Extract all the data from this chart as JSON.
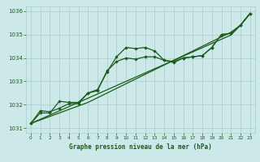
{
  "title": "Graphe pression niveau de la mer (hPa)",
  "bg_color": "#cce8e8",
  "grid_color": "#aacccc",
  "line_color": "#1a5c1a",
  "xlim": [
    -0.5,
    23.5
  ],
  "ylim": [
    1030.8,
    1036.2
  ],
  "yticks": [
    1031,
    1032,
    1033,
    1034,
    1035,
    1036
  ],
  "xticks": [
    0,
    1,
    2,
    3,
    4,
    5,
    6,
    7,
    8,
    9,
    10,
    11,
    12,
    13,
    14,
    15,
    16,
    17,
    18,
    19,
    20,
    21,
    22,
    23
  ],
  "wavy1": [
    1031.2,
    1031.75,
    1031.7,
    1031.85,
    1032.05,
    1032.05,
    1032.5,
    1032.65,
    1033.4,
    1034.05,
    1034.45,
    1034.4,
    1034.45,
    1034.3,
    1033.9,
    1033.8,
    1034.0,
    1034.05,
    1034.1,
    1034.45,
    1035.0,
    1035.05,
    1035.4,
    1035.9
  ],
  "wavy2": [
    1031.2,
    1031.65,
    1031.65,
    1032.15,
    1032.1,
    1032.1,
    1032.5,
    1032.6,
    1033.45,
    1033.85,
    1034.0,
    1033.95,
    1034.05,
    1034.05,
    1033.9,
    1033.85,
    1034.0,
    1034.05,
    1034.1,
    1034.45,
    1035.0,
    1035.05,
    1035.4,
    1035.9
  ],
  "straight1": [
    1031.2,
    1031.38,
    1031.56,
    1031.74,
    1031.92,
    1032.1,
    1032.28,
    1032.46,
    1032.64,
    1032.82,
    1033.0,
    1033.18,
    1033.36,
    1033.54,
    1033.72,
    1033.9,
    1034.08,
    1034.26,
    1034.44,
    1034.62,
    1034.8,
    1034.98,
    1035.4,
    1035.9
  ],
  "straight2": [
    1031.2,
    1031.35,
    1031.5,
    1031.65,
    1031.8,
    1031.95,
    1032.1,
    1032.3,
    1032.5,
    1032.7,
    1032.9,
    1033.1,
    1033.3,
    1033.5,
    1033.7,
    1033.9,
    1034.1,
    1034.3,
    1034.5,
    1034.7,
    1034.9,
    1035.1,
    1035.4,
    1035.9
  ]
}
